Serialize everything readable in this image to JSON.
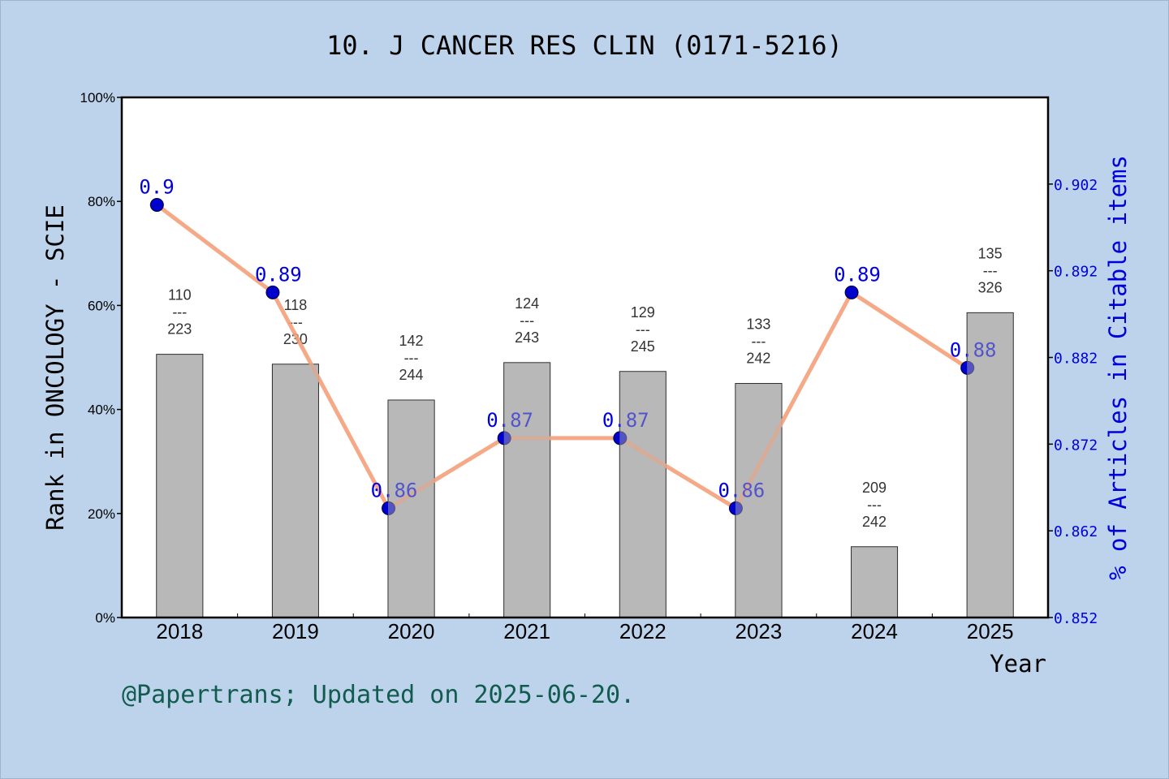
{
  "chart_data": {
    "type": "bar",
    "title": "10. J CANCER RES CLIN (0171-5216)",
    "xlabel": "Year",
    "ylabel_left": "Rank in ONCOLOGY - SCIE",
    "ylabel_right": "% of Articles in Citable items",
    "footer": "@Papertrans; Updated on 2025-06-20.",
    "categories": [
      "2018",
      "2019",
      "2020",
      "2021",
      "2022",
      "2023",
      "2024",
      "2025"
    ],
    "left_axis": {
      "ylim": [
        0,
        100
      ],
      "ticks": [
        "0%",
        "20%",
        "40%",
        "60%",
        "80%",
        "100%"
      ],
      "tick_values": [
        0,
        20,
        40,
        60,
        80,
        100
      ]
    },
    "right_axis": {
      "ylim": [
        0.852,
        0.912
      ],
      "ticks": [
        "0.852",
        "0.862",
        "0.872",
        "0.882",
        "0.892",
        "0.902"
      ],
      "tick_values": [
        0.852,
        0.862,
        0.872,
        0.882,
        0.892,
        0.902
      ]
    },
    "bars": {
      "values": [
        50.6,
        48.7,
        41.8,
        49.0,
        47.3,
        45.0,
        13.6,
        58.6
      ],
      "color": "#b8b8b8",
      "rank": [
        "110",
        "118",
        "142",
        "124",
        "129",
        "133",
        "209",
        "135"
      ],
      "total": [
        "223",
        "230",
        "244",
        "243",
        "245",
        "242",
        "242",
        "326"
      ],
      "separator": "---"
    },
    "line": {
      "values": [
        0.9,
        0.89,
        0.86,
        0.87,
        0.87,
        0.86,
        0.89,
        0.88
      ],
      "labels": [
        "0.9",
        "0.89",
        "0.86",
        "0.87",
        "0.87",
        "0.86",
        "0.89",
        "0.88"
      ],
      "plot_values": [
        0.8996,
        0.8895,
        0.8646,
        0.8727,
        0.8727,
        0.8646,
        0.8895,
        0.8808
      ],
      "line_color": "#f4a07a",
      "marker_color": "#0000cc"
    },
    "colors": {
      "background": "#bcd3eb",
      "plot_background": "#ffffff",
      "right_axis_text": "#0000dd",
      "footer_text": "#125c4f"
    }
  }
}
